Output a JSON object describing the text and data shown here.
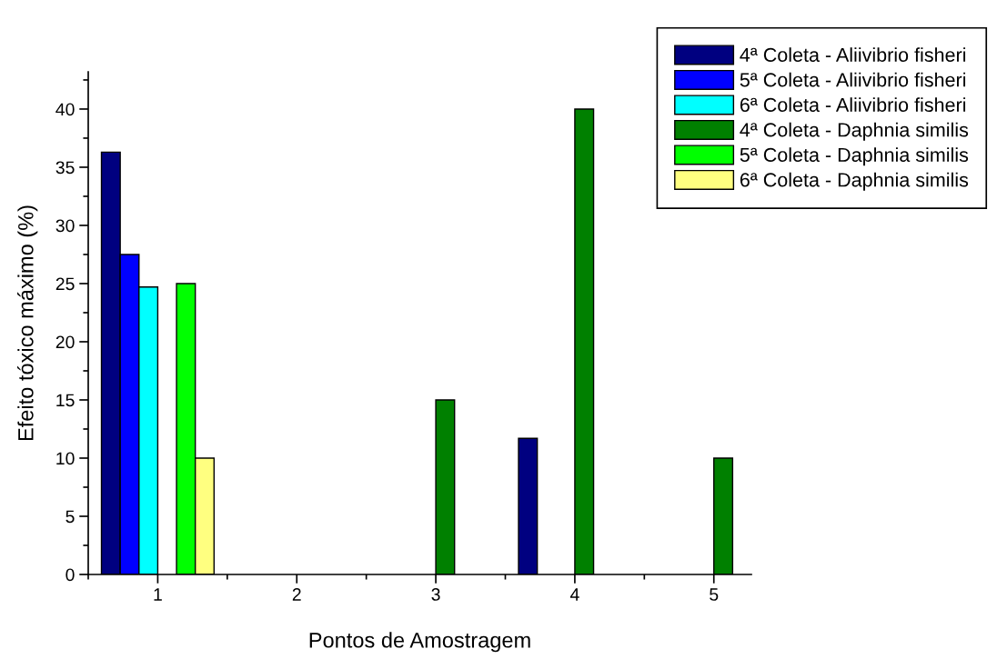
{
  "chart_data": {
    "type": "bar",
    "xlabel": "Pontos de Amostragem",
    "ylabel": "Efeito tóxico máximo (%)",
    "x": [
      1,
      2,
      3,
      4,
      5
    ],
    "series": [
      {
        "name": "4ª Coleta - Aliivibrio fisheri",
        "color": "#000080",
        "values": [
          36.3,
          null,
          null,
          11.7,
          null
        ]
      },
      {
        "name": "5ª Coleta - Aliivibrio fisheri",
        "color": "#0000ff",
        "values": [
          27.5,
          null,
          null,
          null,
          null
        ]
      },
      {
        "name": "6ª Coleta - Aliivibrio fisheri",
        "color": "#00ffff",
        "values": [
          24.7,
          null,
          null,
          null,
          null
        ]
      },
      {
        "name": "4ª Coleta - Daphnia similis",
        "color": "#008000",
        "values": [
          null,
          null,
          15,
          40,
          10
        ]
      },
      {
        "name": "5ª Coleta - Daphnia similis",
        "color": "#00ff00",
        "values": [
          25,
          null,
          null,
          null,
          null
        ]
      },
      {
        "name": "6ª Coleta - Daphnia similis",
        "color": "#ffff80",
        "values": [
          10,
          null,
          null,
          null,
          null
        ]
      }
    ],
    "xlim": [
      0.51,
      5.27
    ],
    "xticks": [
      1,
      2,
      3,
      4,
      5
    ],
    "ylim": [
      0,
      43.2
    ],
    "yticks": [
      0,
      5,
      10,
      15,
      20,
      25,
      30,
      35,
      40
    ],
    "grid": false,
    "legend": "top right"
  }
}
